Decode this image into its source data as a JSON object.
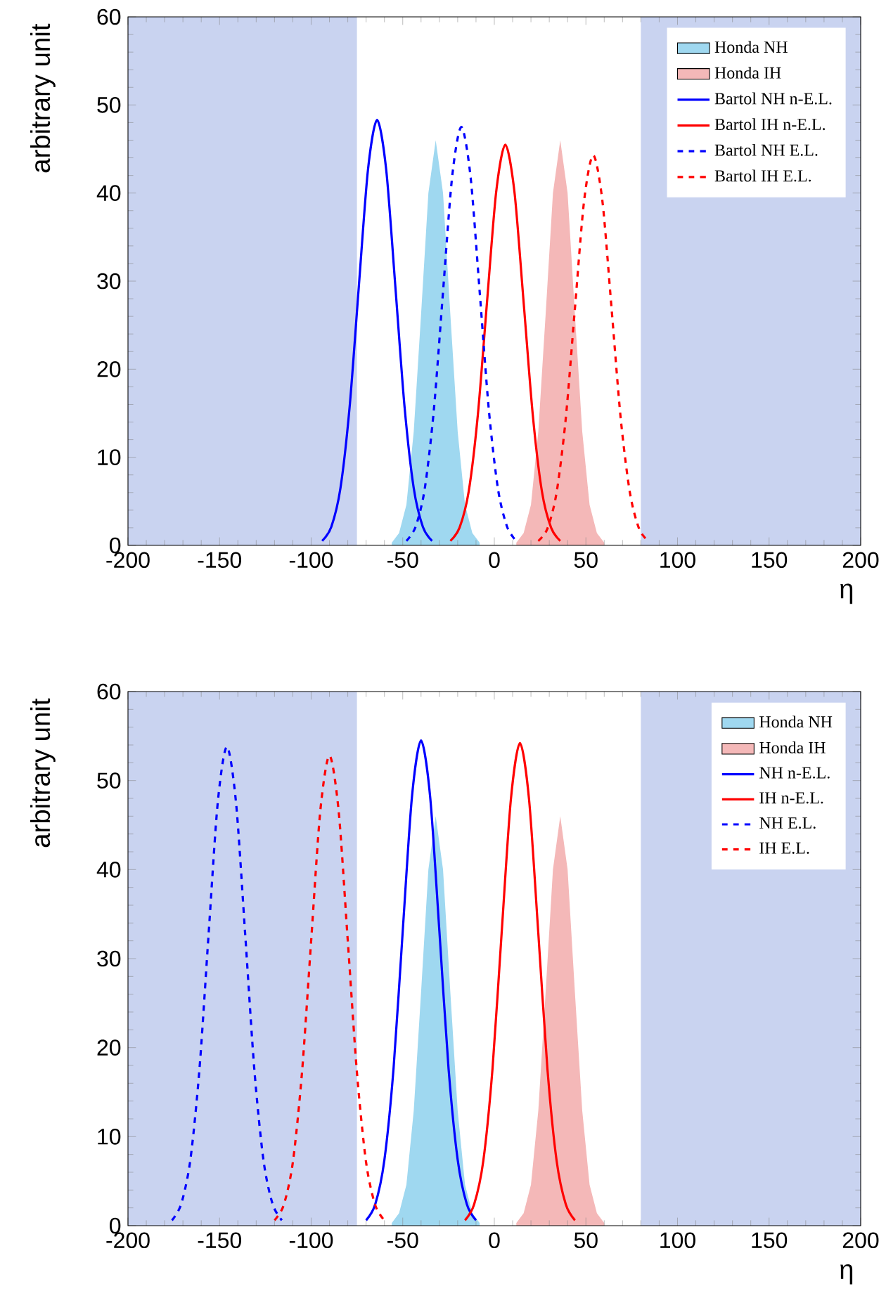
{
  "chart_data": [
    {
      "type": "line",
      "xlabel": "η",
      "ylabel": "arbitrary unit",
      "xlim": [
        -200,
        200
      ],
      "ylim": [
        0,
        60
      ],
      "xticks": [
        -200,
        -150,
        -100,
        -50,
        0,
        50,
        100,
        150,
        200
      ],
      "yticks": [
        0,
        10,
        20,
        30,
        40,
        50,
        60
      ],
      "legend": "top right",
      "bands": [
        {
          "axis": "x",
          "from": -200,
          "to": -75,
          "color": "#c9d3f0"
        },
        {
          "axis": "x",
          "from": 80,
          "to": 200,
          "color": "#c9d3f0"
        }
      ],
      "series": [
        {
          "name": "Honda NH",
          "type": "area",
          "color": "#9fd8f0",
          "x": [
            -56,
            -52,
            -48,
            -44,
            -40,
            -36,
            -32,
            -28,
            -24,
            -20,
            -16,
            -12,
            -8
          ],
          "values": [
            0.3,
            1.4,
            4.6,
            12.9,
            26.2,
            40.0,
            46.0,
            40.0,
            26.2,
            12.9,
            4.6,
            1.4,
            0.3
          ]
        },
        {
          "name": "Honda IH",
          "type": "area",
          "color": "#f4b8b8",
          "x": [
            12,
            16,
            20,
            24,
            28,
            32,
            36,
            40,
            44,
            48,
            52,
            56,
            60
          ],
          "values": [
            0.3,
            1.4,
            4.6,
            12.9,
            26.2,
            40.0,
            46.0,
            40.0,
            26.2,
            12.9,
            4.6,
            1.4,
            0.3
          ]
        },
        {
          "name": "Bartol NH n-E.L.",
          "color": "#0000ff",
          "line_style": "solid",
          "x": [
            -94,
            -89,
            -84,
            -79,
            -74,
            -69,
            -64,
            -59,
            -54,
            -49,
            -44,
            -39,
            -34
          ],
          "values": [
            0.5,
            2.1,
            6.5,
            15.7,
            29.3,
            42.6,
            48.3,
            42.6,
            29.3,
            15.7,
            6.5,
            2.1,
            0.5
          ]
        },
        {
          "name": "Bartol IH n-E.L.",
          "color": "#ff0000",
          "line_style": "solid",
          "x": [
            -24,
            -19,
            -14,
            -9,
            -4,
            1,
            6,
            11,
            16,
            21,
            26,
            31,
            36
          ],
          "values": [
            0.5,
            2.0,
            6.1,
            14.8,
            27.6,
            40.1,
            45.5,
            40.1,
            27.6,
            14.8,
            6.1,
            2.0,
            0.5
          ]
        },
        {
          "name": "Bartol NH E.L.",
          "color": "#0000ff",
          "line_style": "dashed",
          "x": [
            -48,
            -43,
            -38,
            -33,
            -28,
            -23,
            -18,
            -13,
            -8,
            -3,
            2,
            7,
            12
          ],
          "values": [
            0.5,
            2.1,
            6.4,
            15.4,
            28.8,
            41.9,
            47.5,
            41.9,
            28.8,
            15.4,
            6.4,
            2.1,
            0.5
          ]
        },
        {
          "name": "Bartol IH E.L.",
          "color": "#ff0000",
          "line_style": "dashed",
          "x": [
            24,
            29,
            34,
            39,
            44,
            49,
            54,
            59,
            64,
            69,
            74,
            79,
            84
          ],
          "values": [
            0.5,
            1.9,
            6.0,
            14.4,
            26.9,
            39.1,
            44.3,
            39.1,
            26.9,
            14.4,
            6.0,
            1.9,
            0.5
          ]
        }
      ]
    },
    {
      "type": "line",
      "xlabel": "η",
      "ylabel": "arbitrary unit",
      "xlim": [
        -200,
        200
      ],
      "ylim": [
        0,
        60
      ],
      "xticks": [
        -200,
        -150,
        -100,
        -50,
        0,
        50,
        100,
        150,
        200
      ],
      "yticks": [
        0,
        10,
        20,
        30,
        40,
        50,
        60
      ],
      "legend": "top right",
      "bands": [
        {
          "axis": "x",
          "from": -200,
          "to": -75,
          "color": "#c9d3f0"
        },
        {
          "axis": "x",
          "from": 80,
          "to": 200,
          "color": "#c9d3f0"
        }
      ],
      "series": [
        {
          "name": "Honda NH",
          "type": "area",
          "color": "#9fd8f0",
          "x": [
            -56,
            -52,
            -48,
            -44,
            -40,
            -36,
            -32,
            -28,
            -24,
            -20,
            -16,
            -12,
            -8
          ],
          "values": [
            0.3,
            1.4,
            4.6,
            12.9,
            26.2,
            40.0,
            46.0,
            40.0,
            26.2,
            12.9,
            4.6,
            1.4,
            0.3
          ]
        },
        {
          "name": "Honda IH",
          "type": "area",
          "color": "#f4b8b8",
          "x": [
            12,
            16,
            20,
            24,
            28,
            32,
            36,
            40,
            44,
            48,
            52,
            56,
            60
          ],
          "values": [
            0.3,
            1.4,
            4.6,
            12.9,
            26.2,
            40.0,
            46.0,
            40.0,
            26.2,
            12.9,
            4.6,
            1.4,
            0.3
          ]
        },
        {
          "name": "NH n-E.L.",
          "color": "#0000ff",
          "line_style": "solid",
          "x": [
            -70,
            -65,
            -60,
            -55,
            -50,
            -45,
            -40,
            -35,
            -30,
            -25,
            -20,
            -15,
            -10
          ],
          "values": [
            0.6,
            2.4,
            7.4,
            17.7,
            33.1,
            48.1,
            54.5,
            48.1,
            33.1,
            17.7,
            7.4,
            2.4,
            0.6
          ]
        },
        {
          "name": "IH n-E.L.",
          "color": "#ff0000",
          "line_style": "solid",
          "x": [
            -16,
            -11,
            -6,
            -1,
            4,
            9,
            14,
            19,
            24,
            29,
            34,
            39,
            44
          ],
          "values": [
            0.6,
            2.4,
            7.3,
            17.6,
            32.9,
            47.8,
            54.2,
            47.8,
            32.9,
            17.6,
            7.3,
            2.4,
            0.6
          ]
        },
        {
          "name": "NH E.L.",
          "color": "#0000ff",
          "line_style": "dashed",
          "x": [
            -176,
            -171,
            -166,
            -161,
            -156,
            -151,
            -146,
            -141,
            -136,
            -131,
            -126,
            -121,
            -116
          ],
          "values": [
            0.6,
            2.4,
            7.3,
            17.5,
            32.7,
            47.5,
            53.8,
            47.5,
            32.7,
            17.5,
            7.3,
            2.4,
            0.6
          ]
        },
        {
          "name": "IH E.L.",
          "color": "#ff0000",
          "line_style": "dashed",
          "x": [
            -120,
            -115,
            -110,
            -105,
            -100,
            -95,
            -90,
            -85,
            -80,
            -75,
            -70,
            -65,
            -60
          ],
          "values": [
            0.6,
            2.3,
            7.1,
            17.2,
            32.0,
            46.6,
            52.8,
            46.6,
            32.0,
            17.2,
            7.1,
            2.3,
            0.6
          ]
        }
      ]
    }
  ]
}
